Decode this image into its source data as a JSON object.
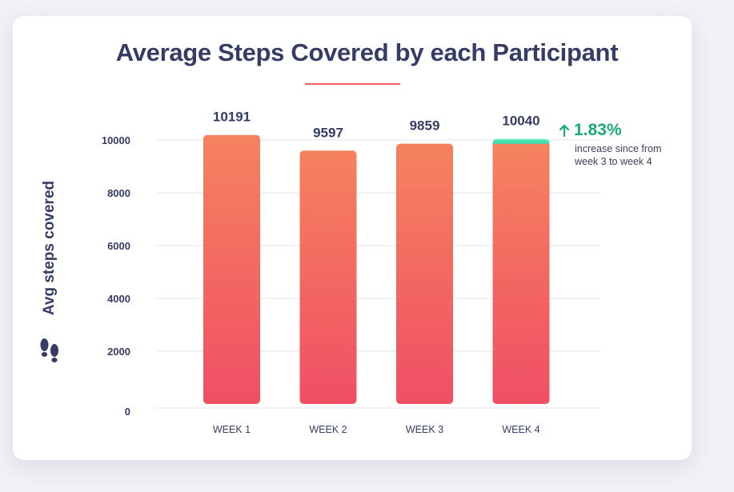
{
  "chart_data": {
    "type": "bar",
    "title": "Average Steps Covered by each Participant",
    "xlabel": "",
    "ylabel": "Avg steps covered",
    "categories": [
      "WEEK 1",
      "WEEK 2",
      "WEEK 3",
      "WEEK 4"
    ],
    "values": [
      10191,
      9597,
      9859,
      10040
    ],
    "value_labels": [
      "10191",
      "9597",
      "9859",
      "10040"
    ],
    "highlight": {
      "category": "WEEK 4",
      "baseline": 9859,
      "increase": 181
    },
    "yticks": [
      0,
      2000,
      4000,
      6000,
      8000,
      10000
    ],
    "ytick_labels": [
      "0",
      "2000",
      "4000",
      "6000",
      "8000",
      "10000"
    ],
    "ylim": [
      0,
      10000
    ],
    "grid": true,
    "legend": "none",
    "annotation": {
      "value": "1.83%",
      "text": "increase since from week 3 to week 4"
    },
    "colors": {
      "bar_top": "#f5825f",
      "bar_bottom": "#f04f64",
      "increase_top": "#5ef0c3",
      "increase_bottom": "#2ed7a4",
      "positive": "#19a97a",
      "accent": "#ef5f5f",
      "text": "#353c66",
      "grid": "#e4e4ea"
    }
  },
  "icon": "footprints-icon"
}
